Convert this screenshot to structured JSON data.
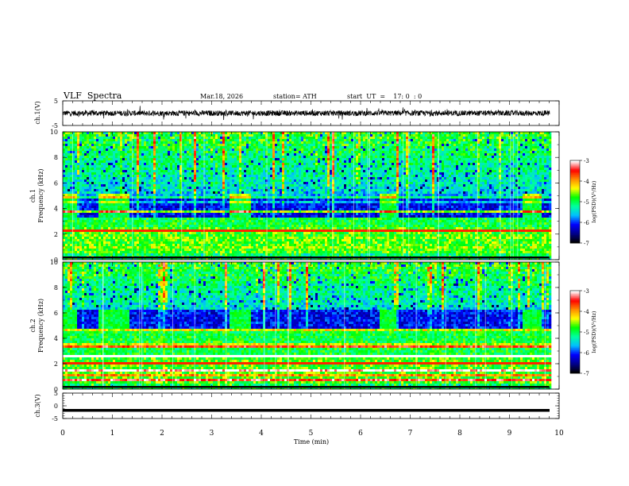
{
  "header": {
    "title": "VLF  Spectra",
    "date": "Mar.18, 2026",
    "station": "station= ATH",
    "start_ut": "start  UT  =    17: 0  : 0"
  },
  "chart_data": [
    {
      "type": "line",
      "name": "ch1-waveform",
      "ylabel": "ch.1(V)",
      "ylim": [
        -5,
        5
      ],
      "yticks": [
        "5",
        "-5"
      ],
      "xlim": [
        0,
        10
      ],
      "approx_level": 0,
      "data_end_min": 9.8
    },
    {
      "type": "heatmap",
      "name": "ch1-spectrogram",
      "ylabel": "ch.1 Frequency (kHz)",
      "ylim": [
        0,
        10
      ],
      "yticks": [
        "0",
        "2",
        "4",
        "6",
        "8",
        "10"
      ],
      "xlim": [
        0,
        10
      ],
      "data_end_min": 9.8,
      "colorbar": {
        "label": "log(PSD)(V²/Hz)",
        "range": [
          -7,
          -3
        ],
        "ticks": [
          "-3",
          "-4",
          "-5",
          "-6",
          "-7"
        ]
      },
      "low_power_band_khz": [
        3.3,
        5.2
      ],
      "enhanced_intervals_min": [
        [
          0.0,
          0.25
        ],
        [
          0.7,
          1.3
        ],
        [
          3.35,
          3.75
        ],
        [
          6.35,
          6.7
        ],
        [
          9.25,
          9.6
        ]
      ]
    },
    {
      "type": "heatmap",
      "name": "ch2-spectrogram",
      "ylabel": "ch.2 Frequency (kHz)",
      "ylim": [
        0,
        10
      ],
      "yticks": [
        "0",
        "2",
        "4",
        "6",
        "8",
        "10"
      ],
      "xlim": [
        0,
        10
      ],
      "data_end_min": 9.8,
      "colorbar": {
        "label": "log(PSD)(V²/Hz)",
        "range": [
          -7,
          -3
        ],
        "ticks": [
          "-3",
          "-4",
          "-5",
          "-6",
          "-7"
        ]
      },
      "low_power_band_khz": [
        4.8,
        6.2
      ],
      "enhanced_intervals_min": [
        [
          0.0,
          0.25
        ],
        [
          0.7,
          1.3
        ],
        [
          3.35,
          3.75
        ],
        [
          6.35,
          6.7
        ],
        [
          9.25,
          9.6
        ]
      ]
    },
    {
      "type": "line",
      "name": "ch3-waveform",
      "ylabel": "ch.3(V)",
      "ylim": [
        -5,
        5
      ],
      "yticks": [
        "5",
        "0",
        "-5"
      ],
      "xlim": [
        0,
        10
      ],
      "approx_level": -1.8,
      "data_end_min": 9.8
    }
  ],
  "xaxis": {
    "label": "Time  (min)",
    "ticks": [
      "0",
      "1",
      "2",
      "3",
      "4",
      "5",
      "6",
      "7",
      "8",
      "9",
      "10"
    ]
  },
  "colors": {
    "colormap": [
      "#000000",
      "#00008b",
      "#0000ff",
      "#00bfff",
      "#00ffa0",
      "#00ff00",
      "#ffff00",
      "#ff8c00",
      "#ff0000",
      "#ffffff"
    ]
  }
}
